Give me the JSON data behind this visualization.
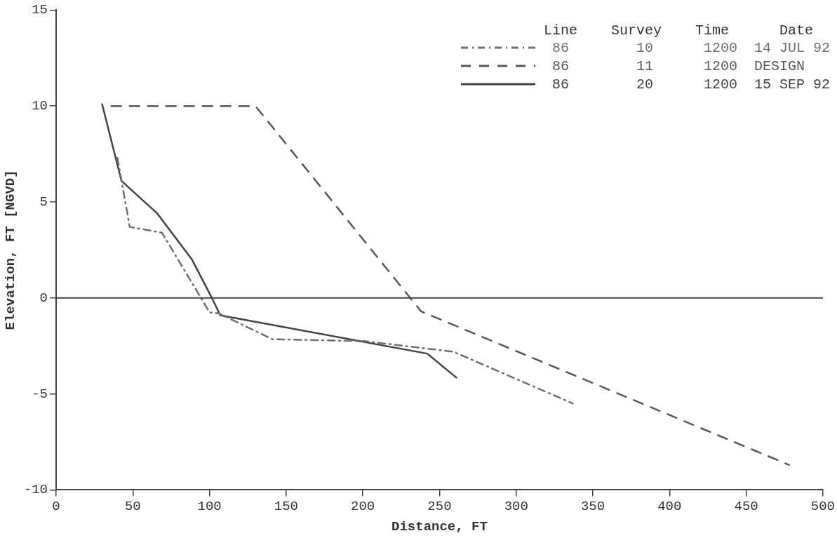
{
  "chart_data": {
    "type": "line",
    "xlabel": "Distance, FT",
    "ylabel": "Elevation, FT [NGVD]",
    "legend_title": "Line    Survey    Time      Date",
    "legend": "top right",
    "grid": false,
    "marker": "none",
    "xlim": [
      0,
      500
    ],
    "xticks": [
      0,
      50,
      100,
      150,
      200,
      250,
      300,
      350,
      400,
      450,
      500
    ],
    "ylim": [
      -10,
      15
    ],
    "yticks": [
      -10,
      -5,
      0,
      5,
      10,
      15
    ],
    "ref_lines": [
      {
        "axis": "y",
        "value": 0,
        "color": "#444444"
      }
    ],
    "series": [
      {
        "name": " 86        10      1200  14 JUL 92",
        "color": "#707070",
        "line_style": "dashdot",
        "x": [
          40,
          48,
          69,
          93,
          100,
          106,
          141,
          201,
          259,
          337
        ],
        "values": [
          7.3,
          3.7,
          3.4,
          0.2,
          -0.75,
          -0.8,
          -2.15,
          -2.25,
          -2.8,
          -5.5
        ]
      },
      {
        "name": " 86        11      1200  DESIGN",
        "color": "#585858",
        "line_style": "dashed",
        "x": [
          36,
          130,
          238,
          478
        ],
        "values": [
          10,
          10,
          -0.7,
          -8.7
        ]
      },
      {
        "name": " 86        20      1200  15 SEP 92",
        "color": "#444444",
        "line_style": "solid",
        "x": [
          30,
          42.6,
          66,
          88.6,
          101.6,
          107,
          242,
          261
        ],
        "values": [
          10.1,
          6.1,
          4.4,
          2.0,
          0,
          -0.9,
          -2.9,
          -4.15
        ]
      }
    ]
  }
}
